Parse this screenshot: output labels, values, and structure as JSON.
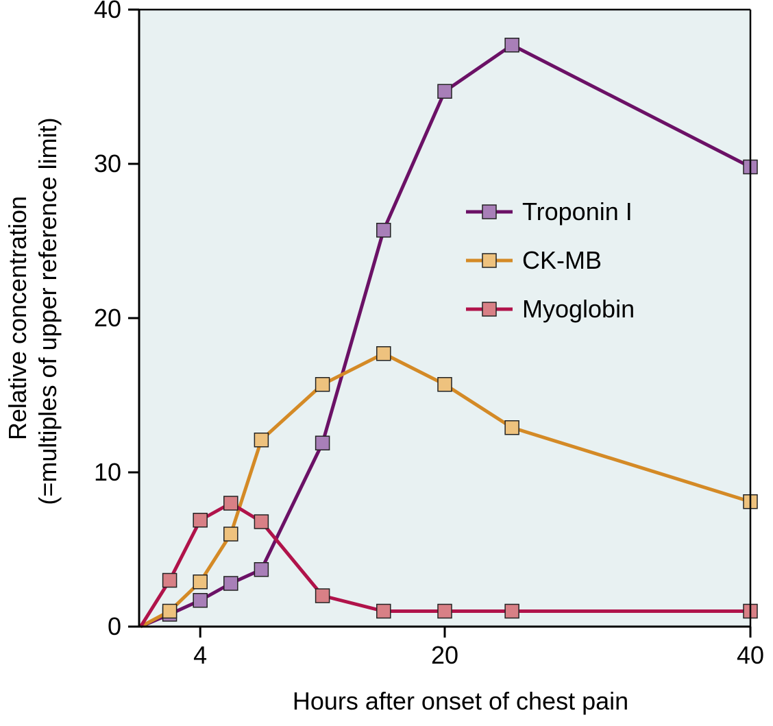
{
  "chart_data": {
    "type": "line",
    "title": "",
    "xlabel": "Hours after onset of chest pain",
    "ylabel": "Relative concentration",
    "ylabel_sub": "(=multiples of upper reference limit)",
    "xlim": [
      0,
      40
    ],
    "ylim": [
      0,
      40
    ],
    "x_ticks": [
      4,
      20,
      40
    ],
    "x_tick_labels": [
      "4",
      "20",
      "40"
    ],
    "y_ticks": [
      0,
      10,
      20,
      30,
      40
    ],
    "y_tick_labels": [
      "0",
      "10",
      "20",
      "30",
      "40"
    ],
    "grid": false,
    "legend_position": "right",
    "plot_background": "#e8f1f2",
    "series": [
      {
        "name": "Troponin I",
        "line_color": "#6b1166",
        "marker_color": "#a87fb8",
        "x": [
          0.1,
          2,
          4,
          6,
          8,
          12,
          16,
          20,
          24.4,
          40
        ],
        "y": [
          0,
          0.8,
          1.7,
          2.8,
          3.7,
          11.9,
          25.7,
          34.7,
          37.7,
          29.8
        ]
      },
      {
        "name": "CK-MB",
        "line_color": "#d48a26",
        "marker_color": "#eec27e",
        "x": [
          0.1,
          2,
          4,
          6,
          8,
          12,
          16,
          20,
          24.4,
          40
        ],
        "y": [
          0,
          1.0,
          2.9,
          6.0,
          12.1,
          15.7,
          17.7,
          15.7,
          12.9,
          8.1
        ]
      },
      {
        "name": "Myoglobin",
        "line_color": "#b0134a",
        "marker_color": "#d88086",
        "x": [
          0.1,
          2,
          4,
          6,
          8,
          12,
          16,
          20,
          24.4,
          40
        ],
        "y": [
          0,
          3.0,
          6.9,
          8.0,
          6.8,
          2.0,
          1.0,
          1.0,
          1.0,
          1.0
        ]
      }
    ]
  }
}
